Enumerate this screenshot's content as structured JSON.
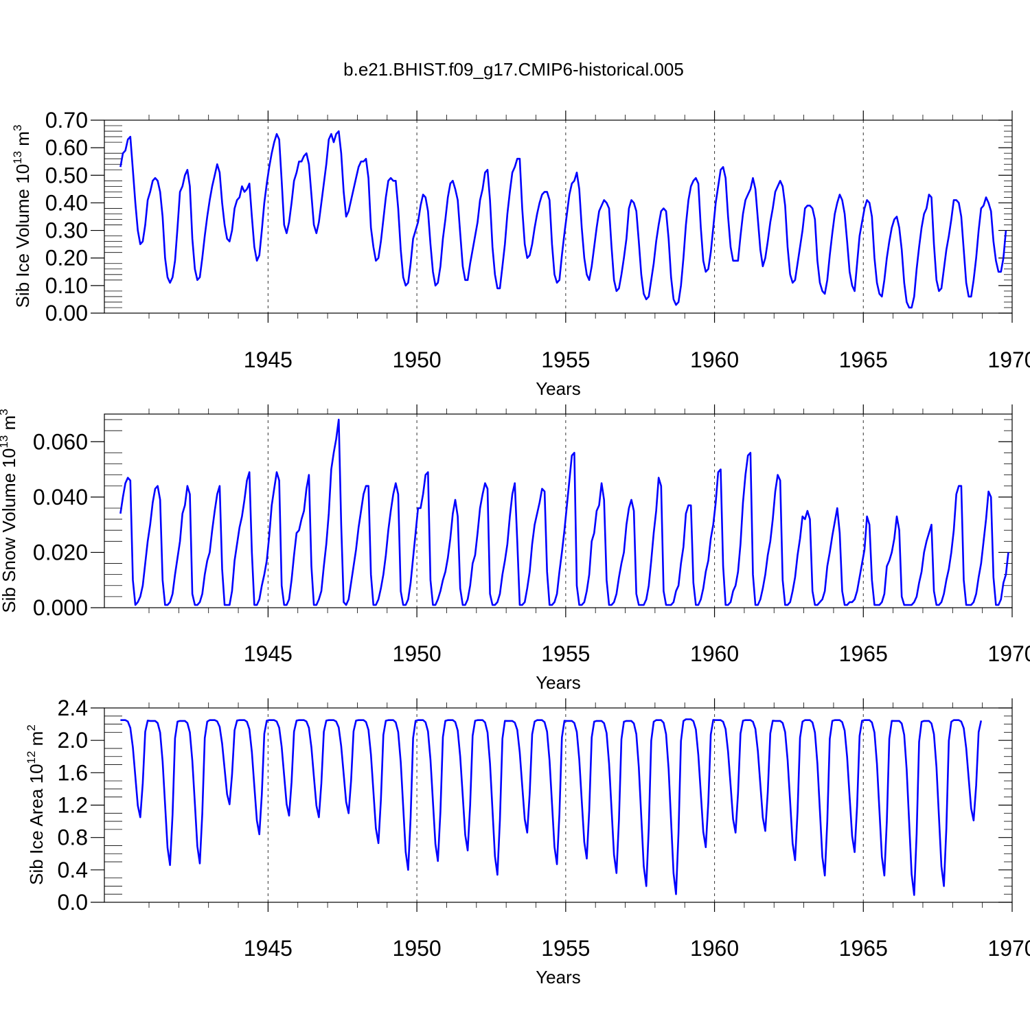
{
  "page_title": "b.e21.BHIST.f09_g17.CMIP6-historical.005",
  "colors": {
    "series": "#0000ff",
    "axes": "#000000",
    "grid": "#444444"
  },
  "chart_data": [
    {
      "type": "line",
      "title": "b.e21.BHIST.f09_g17.CMIP6-historical.005",
      "ylabel": "Sib Ice Volume 10",
      "ylabel_sup": "13",
      "ylabel_unit": " m",
      "ylabel_unit_sup": "3",
      "xlabel": "Years",
      "xlim": [
        1940.1,
        1970.0
      ],
      "ylim": [
        0,
        0.7
      ],
      "x_ticks": [
        1945,
        1950,
        1955,
        1960,
        1965,
        1970
      ],
      "x_tick_labels": [
        "1945",
        "1950",
        "1955",
        "1960",
        "1965",
        "1970"
      ],
      "y_ticks": [
        0,
        0.1,
        0.2,
        0.3,
        0.4,
        0.5,
        0.6,
        0.7
      ],
      "y_tick_labels": [
        "0.00",
        "0.10",
        "0.20",
        "0.30",
        "0.40",
        "0.50",
        "0.60",
        "0.70"
      ],
      "vertical_grid": true,
      "series": [
        {
          "x_start": 1940.04,
          "values": [
            0.53,
            0.58,
            0.59,
            0.63,
            0.64,
            0.52,
            0.4,
            0.3,
            0.25,
            0.26,
            0.32,
            0.41,
            0.44,
            0.48,
            0.49,
            0.48,
            0.44,
            0.35,
            0.2,
            0.13,
            0.11,
            0.13,
            0.19,
            0.31,
            0.44,
            0.46,
            0.5,
            0.52,
            0.46,
            0.27,
            0.16,
            0.12,
            0.13,
            0.2,
            0.28,
            0.35,
            0.41,
            0.46,
            0.5,
            0.54,
            0.51,
            0.4,
            0.32,
            0.27,
            0.26,
            0.3,
            0.38,
            0.41,
            0.42,
            0.46,
            0.44,
            0.45,
            0.47,
            0.35,
            0.24,
            0.19,
            0.21,
            0.3,
            0.4,
            0.47,
            0.53,
            0.58,
            0.62,
            0.65,
            0.63,
            0.48,
            0.32,
            0.29,
            0.33,
            0.4,
            0.48,
            0.51,
            0.55,
            0.55,
            0.57,
            0.58,
            0.54,
            0.43,
            0.32,
            0.29,
            0.33,
            0.4,
            0.47,
            0.54,
            0.63,
            0.65,
            0.62,
            0.65,
            0.66,
            0.58,
            0.44,
            0.35,
            0.37,
            0.41,
            0.45,
            0.49,
            0.53,
            0.55,
            0.55,
            0.56,
            0.49,
            0.31,
            0.24,
            0.19,
            0.2,
            0.26,
            0.34,
            0.42,
            0.48,
            0.49,
            0.48,
            0.48,
            0.38,
            0.23,
            0.13,
            0.1,
            0.11,
            0.18,
            0.27,
            0.3,
            0.33,
            0.39,
            0.43,
            0.42,
            0.37,
            0.25,
            0.15,
            0.1,
            0.11,
            0.17,
            0.27,
            0.34,
            0.42,
            0.47,
            0.48,
            0.45,
            0.41,
            0.29,
            0.17,
            0.12,
            0.12,
            0.18,
            0.23,
            0.28,
            0.33,
            0.41,
            0.45,
            0.51,
            0.52,
            0.41,
            0.24,
            0.14,
            0.09,
            0.09,
            0.17,
            0.25,
            0.36,
            0.44,
            0.51,
            0.53,
            0.56,
            0.56,
            0.38,
            0.25,
            0.2,
            0.21,
            0.25,
            0.31,
            0.36,
            0.4,
            0.43,
            0.44,
            0.44,
            0.41,
            0.25,
            0.14,
            0.11,
            0.12,
            0.21,
            0.29,
            0.36,
            0.43,
            0.47,
            0.48,
            0.51,
            0.45,
            0.31,
            0.2,
            0.14,
            0.12,
            0.17,
            0.24,
            0.31,
            0.37,
            0.39,
            0.41,
            0.4,
            0.38,
            0.24,
            0.12,
            0.08,
            0.09,
            0.14,
            0.2,
            0.27,
            0.38,
            0.41,
            0.4,
            0.37,
            0.26,
            0.14,
            0.07,
            0.05,
            0.06,
            0.12,
            0.18,
            0.26,
            0.32,
            0.37,
            0.38,
            0.37,
            0.27,
            0.13,
            0.05,
            0.03,
            0.04,
            0.1,
            0.2,
            0.32,
            0.41,
            0.46,
            0.48,
            0.49,
            0.47,
            0.31,
            0.19,
            0.15,
            0.16,
            0.22,
            0.31,
            0.4,
            0.46,
            0.52,
            0.53,
            0.49,
            0.35,
            0.24,
            0.19,
            0.19,
            0.19,
            0.28,
            0.36,
            0.41,
            0.43,
            0.45,
            0.49,
            0.45,
            0.34,
            0.23,
            0.17,
            0.2,
            0.26,
            0.33,
            0.38,
            0.44,
            0.46,
            0.48,
            0.46,
            0.39,
            0.24,
            0.14,
            0.11,
            0.12,
            0.18,
            0.24,
            0.3,
            0.38,
            0.39,
            0.39,
            0.38,
            0.34,
            0.19,
            0.11,
            0.08,
            0.07,
            0.12,
            0.21,
            0.29,
            0.36,
            0.4,
            0.43,
            0.41,
            0.36,
            0.26,
            0.15,
            0.1,
            0.08,
            0.18,
            0.28,
            0.33,
            0.38,
            0.41,
            0.4,
            0.35,
            0.2,
            0.11,
            0.07,
            0.06,
            0.12,
            0.2,
            0.26,
            0.31,
            0.34,
            0.35,
            0.31,
            0.23,
            0.11,
            0.04,
            0.02,
            0.02,
            0.06,
            0.16,
            0.24,
            0.31,
            0.36,
            0.38,
            0.43,
            0.42,
            0.25,
            0.12,
            0.08,
            0.09,
            0.16,
            0.23,
            0.28,
            0.34,
            0.41,
            0.41,
            0.4,
            0.35,
            0.23,
            0.11,
            0.06,
            0.06,
            0.12,
            0.2,
            0.3,
            0.38,
            0.39,
            0.42,
            0.4,
            0.37,
            0.26,
            0.19,
            0.15,
            0.15,
            0.2,
            0.3
          ]
        }
      ]
    },
    {
      "type": "line",
      "ylabel": "Sib Snow Volume 10",
      "ylabel_sup": "13",
      "ylabel_unit": " m",
      "ylabel_unit_sup": "3",
      "xlabel": "Years",
      "xlim": [
        1940.1,
        1970.0
      ],
      "ylim": [
        0,
        0.07
      ],
      "x_ticks": [
        1945,
        1950,
        1955,
        1960,
        1965,
        1970
      ],
      "x_tick_labels": [
        "1945",
        "1950",
        "1955",
        "1960",
        "1965",
        "1970"
      ],
      "y_ticks": [
        0,
        0.02,
        0.04,
        0.06
      ],
      "y_tick_labels": [
        "0.000",
        "0.020",
        "0.040",
        "0.060"
      ],
      "vertical_grid": true,
      "series": [
        {
          "x_start": 1940.04,
          "values": [
            0.034,
            0.04,
            0.045,
            0.047,
            0.046,
            0.01,
            0.001,
            0.002,
            0.004,
            0.008,
            0.016,
            0.024,
            0.03,
            0.038,
            0.043,
            0.044,
            0.039,
            0.01,
            0.001,
            0.001,
            0.002,
            0.005,
            0.012,
            0.018,
            0.024,
            0.034,
            0.037,
            0.044,
            0.041,
            0.005,
            0.001,
            0.001,
            0.002,
            0.005,
            0.012,
            0.017,
            0.02,
            0.028,
            0.035,
            0.041,
            0.044,
            0.014,
            0.001,
            0.001,
            0.001,
            0.006,
            0.017,
            0.023,
            0.029,
            0.033,
            0.039,
            0.046,
            0.049,
            0.02,
            0.001,
            0.001,
            0.003,
            0.008,
            0.012,
            0.017,
            0.026,
            0.037,
            0.043,
            0.049,
            0.046,
            0.008,
            0.001,
            0.001,
            0.003,
            0.01,
            0.019,
            0.027,
            0.028,
            0.032,
            0.035,
            0.043,
            0.048,
            0.015,
            0.001,
            0.001,
            0.003,
            0.006,
            0.015,
            0.023,
            0.034,
            0.05,
            0.056,
            0.061,
            0.068,
            0.03,
            0.002,
            0.001,
            0.003,
            0.009,
            0.015,
            0.021,
            0.029,
            0.035,
            0.041,
            0.044,
            0.044,
            0.012,
            0.001,
            0.001,
            0.003,
            0.007,
            0.012,
            0.019,
            0.028,
            0.035,
            0.041,
            0.045,
            0.041,
            0.006,
            0.001,
            0.001,
            0.003,
            0.009,
            0.018,
            0.027,
            0.036,
            0.036,
            0.041,
            0.048,
            0.049,
            0.01,
            0.001,
            0.001,
            0.003,
            0.006,
            0.01,
            0.013,
            0.018,
            0.025,
            0.034,
            0.039,
            0.033,
            0.007,
            0.001,
            0.001,
            0.003,
            0.008,
            0.016,
            0.019,
            0.027,
            0.036,
            0.041,
            0.045,
            0.043,
            0.005,
            0.001,
            0.001,
            0.002,
            0.005,
            0.012,
            0.017,
            0.023,
            0.033,
            0.041,
            0.045,
            0.024,
            0.001,
            0.001,
            0.002,
            0.007,
            0.013,
            0.023,
            0.03,
            0.034,
            0.038,
            0.043,
            0.042,
            0.013,
            0.001,
            0.001,
            0.002,
            0.005,
            0.013,
            0.02,
            0.028,
            0.037,
            0.046,
            0.055,
            0.056,
            0.008,
            0.001,
            0.001,
            0.002,
            0.006,
            0.012,
            0.024,
            0.027,
            0.035,
            0.037,
            0.045,
            0.039,
            0.01,
            0.001,
            0.001,
            0.002,
            0.005,
            0.011,
            0.016,
            0.02,
            0.03,
            0.036,
            0.039,
            0.035,
            0.005,
            0.001,
            0.001,
            0.001,
            0.003,
            0.008,
            0.017,
            0.027,
            0.035,
            0.047,
            0.044,
            0.006,
            0.001,
            0.001,
            0.001,
            0.002,
            0.006,
            0.008,
            0.016,
            0.022,
            0.034,
            0.037,
            0.037,
            0.009,
            0.001,
            0.001,
            0.003,
            0.007,
            0.013,
            0.017,
            0.025,
            0.03,
            0.038,
            0.049,
            0.05,
            0.015,
            0.001,
            0.001,
            0.002,
            0.006,
            0.008,
            0.013,
            0.023,
            0.038,
            0.048,
            0.055,
            0.056,
            0.012,
            0.001,
            0.001,
            0.003,
            0.007,
            0.012,
            0.019,
            0.024,
            0.032,
            0.042,
            0.048,
            0.046,
            0.01,
            0.001,
            0.001,
            0.002,
            0.006,
            0.011,
            0.019,
            0.025,
            0.033,
            0.032,
            0.035,
            0.032,
            0.006,
            0.001,
            0.001,
            0.002,
            0.003,
            0.006,
            0.015,
            0.02,
            0.026,
            0.031,
            0.036,
            0.027,
            0.006,
            0.001,
            0.001,
            0.002,
            0.002,
            0.003,
            0.006,
            0.011,
            0.016,
            0.021,
            0.033,
            0.03,
            0.01,
            0.001,
            0.001,
            0.001,
            0.002,
            0.005,
            0.015,
            0.017,
            0.02,
            0.025,
            0.033,
            0.028,
            0.004,
            0.001,
            0.001,
            0.001,
            0.001,
            0.002,
            0.004,
            0.009,
            0.013,
            0.02,
            0.024,
            0.027,
            0.03,
            0.006,
            0.001,
            0.001,
            0.002,
            0.005,
            0.01,
            0.014,
            0.02,
            0.028,
            0.041,
            0.044,
            0.044,
            0.01,
            0.001,
            0.001,
            0.001,
            0.002,
            0.005,
            0.011,
            0.016,
            0.024,
            0.032,
            0.042,
            0.04,
            0.011,
            0.001,
            0.001,
            0.003,
            0.009,
            0.012,
            0.02
          ]
        }
      ]
    },
    {
      "type": "line",
      "ylabel": "Sib Ice Area 10",
      "ylabel_sup": "12",
      "ylabel_unit": " m",
      "ylabel_unit_sup": "2",
      "xlabel": "Years",
      "xlim": [
        1940.1,
        1970.0
      ],
      "ylim": [
        0,
        2.4
      ],
      "x_ticks": [
        1945,
        1950,
        1955,
        1960,
        1965,
        1970
      ],
      "x_tick_labels": [
        "1945",
        "1950",
        "1955",
        "1960",
        "1965",
        "1970"
      ],
      "y_ticks": [
        0,
        0.4,
        0.8,
        1.2,
        1.6,
        2.0,
        2.4
      ],
      "y_tick_labels": [
        "0.0",
        "0.4",
        "0.8",
        "1.2",
        "1.6",
        "2.0",
        "2.4"
      ],
      "vertical_grid": true,
      "series": [
        {
          "x_start": 1940.04,
          "minima": [
            1.05,
            0.46,
            0.48,
            1.21,
            0.84,
            1.07,
            1.05,
            1.1,
            0.73,
            0.4,
            0.51,
            0.64,
            0.34,
            0.86,
            0.47,
            0.54,
            0.36,
            0.2,
            0.1,
            0.68,
            0.86,
            0.88,
            0.52,
            0.33,
            0.62,
            0.33,
            0.09,
            0.2,
            1.01
          ],
          "maxima": [
            2.25,
            2.24,
            2.24,
            2.25,
            2.25,
            2.25,
            2.25,
            2.25,
            2.25,
            2.25,
            2.25,
            2.25,
            2.25,
            2.24,
            2.25,
            2.24,
            2.24,
            2.24,
            2.25,
            2.26,
            2.25,
            2.25,
            2.24,
            2.25,
            2.25,
            2.25,
            2.24,
            2.24,
            2.25
          ],
          "shape": "monthly seasonal cycle: plateau near maximum in winter, sharp minimum near September"
        }
      ]
    }
  ]
}
